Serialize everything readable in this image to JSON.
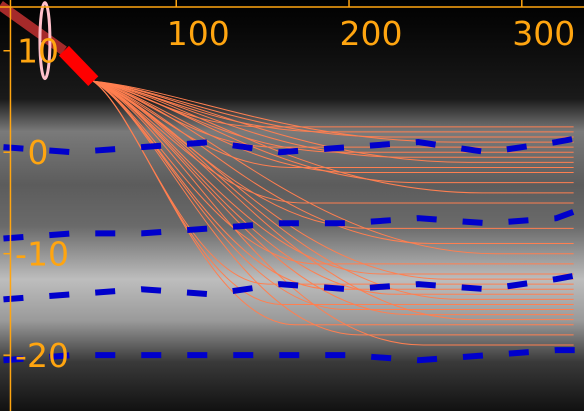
{
  "chart_data": {
    "type": "line",
    "x_ticks": [
      100,
      200,
      300
    ],
    "y_ticks": [
      10,
      0,
      -10,
      -20
    ],
    "xlim": [
      -2,
      336
    ],
    "ylim": [
      -25.5,
      15
    ],
    "grid": false,
    "colors": {
      "axis": "#ffa510",
      "trajectories": "#ff7f50",
      "dashed_series": "#0000cc",
      "head_segment": "#ff0000",
      "tail_segment": "#a52a2a",
      "marker": "#ffc0cb"
    },
    "head_segment": {
      "x": [
        -2,
        35,
        52
      ],
      "y": [
        14.5,
        10,
        7
      ]
    },
    "marker": {
      "x": 24,
      "y": 11
    },
    "dashed_series": [
      {
        "x": [
          0,
          40,
          80,
          120,
          160,
          200,
          240,
          280,
          320,
          336
        ],
        "y": [
          0.5,
          0,
          0.5,
          1,
          0,
          0.5,
          1,
          0,
          1,
          1.5
        ]
      },
      {
        "x": [
          0,
          40,
          80,
          120,
          160,
          200,
          240,
          280,
          320,
          336
        ],
        "y": [
          -8.5,
          -8,
          -8,
          -7.5,
          -7,
          -7,
          -6.5,
          -7,
          -6.5,
          -5.5
        ]
      },
      {
        "x": [
          0,
          40,
          80,
          120,
          160,
          200,
          240,
          280,
          320,
          336
        ],
        "y": [
          -14.5,
          -14,
          -13.5,
          -14,
          -13,
          -13.5,
          -13,
          -13.5,
          -12.5,
          -12
        ]
      },
      {
        "x": [
          0,
          40,
          80,
          120,
          160,
          200,
          240,
          280,
          320,
          336
        ],
        "y": [
          -20.5,
          -20,
          -20,
          -20,
          -20,
          -20,
          -20.5,
          -20,
          -19.5,
          -19.5
        ]
      }
    ],
    "trajectories": {
      "start": [
        52,
        7
      ],
      "end_x": 330,
      "end_y": [
        2.5,
        2,
        1.5,
        1,
        0.5,
        0,
        -0.5,
        -1,
        -1.5,
        -2,
        -3,
        -4,
        -5,
        -7.5,
        -9,
        -10,
        -11,
        -12,
        -12.5,
        -13,
        -13.5,
        -14,
        -14.5,
        -15,
        -15.5,
        -16,
        -16.5,
        -17,
        -18,
        -19
      ]
    }
  }
}
